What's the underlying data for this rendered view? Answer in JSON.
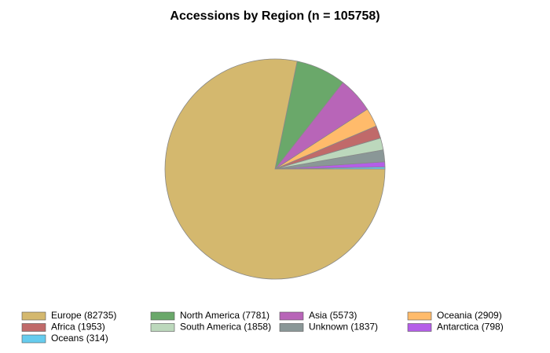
{
  "chart_data": {
    "type": "pie",
    "title": "Accessions by Region (n = 105758)",
    "categories": [
      "Europe (82735)",
      "North America (7781)",
      "Asia (5573)",
      "Oceania (2909)",
      "Africa (1953)",
      "South America (1858)",
      "Unknown (1837)",
      "Antarctica (798)",
      "Oceans (314)"
    ],
    "values": [
      82735,
      7781,
      5573,
      2909,
      1953,
      1858,
      1837,
      798,
      314
    ],
    "colors": [
      "#d4b86e",
      "#6aa86a",
      "#b865b8",
      "#ffbb6b",
      "#c06a6a",
      "#bcd8bc",
      "#8a9797",
      "#b45ee8",
      "#66ccee"
    ]
  }
}
